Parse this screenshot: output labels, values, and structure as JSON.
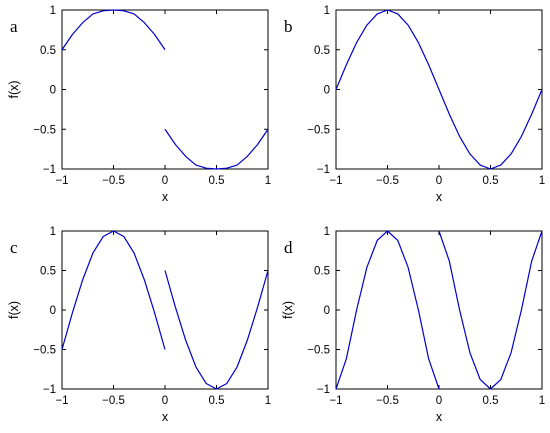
{
  "line_color": "#0000cc",
  "chart_data": [
    {
      "type": "line",
      "panel_label": "a",
      "xlabel": "x",
      "ylabel": "f(x)",
      "xlim": [
        -1,
        1
      ],
      "ylim": [
        -1,
        1
      ],
      "xticks": [
        "−1",
        "−0.5",
        "0",
        "0.5",
        "1"
      ],
      "yticks": [
        "−1",
        "−0.5",
        "0",
        "0.5",
        "1"
      ],
      "series": [
        {
          "x": [
            -1,
            -0.9,
            -0.8,
            -0.7,
            -0.6,
            -0.5,
            -0.4,
            -0.3,
            -0.2,
            -0.1,
            0
          ],
          "y": [
            0.5,
            0.69,
            0.84,
            0.95,
            0.99,
            1.0,
            0.99,
            0.95,
            0.84,
            0.69,
            0.5
          ]
        },
        {
          "x": [
            0,
            0.1,
            0.2,
            0.3,
            0.4,
            0.5,
            0.6,
            0.7,
            0.8,
            0.9,
            1
          ],
          "y": [
            -0.5,
            -0.69,
            -0.84,
            -0.95,
            -0.99,
            -1.0,
            -0.99,
            -0.95,
            -0.84,
            -0.69,
            -0.5
          ]
        }
      ],
      "grid": false,
      "legend": "none"
    },
    {
      "type": "line",
      "panel_label": "b",
      "xlabel": "x",
      "ylabel": "",
      "xlim": [
        -1,
        1
      ],
      "ylim": [
        -1,
        1
      ],
      "xticks": [
        "−1",
        "−0.5",
        "0",
        "0.5",
        "1"
      ],
      "yticks": [
        "−1",
        "−0.5",
        "0",
        "0.5",
        "1"
      ],
      "series": [
        {
          "x": [
            -1,
            -0.9,
            -0.8,
            -0.7,
            -0.6,
            -0.5,
            -0.4,
            -0.3,
            -0.2,
            -0.1,
            0,
            0.1,
            0.2,
            0.3,
            0.4,
            0.5,
            0.6,
            0.7,
            0.8,
            0.9,
            1
          ],
          "y": [
            0,
            0.31,
            0.59,
            0.81,
            0.95,
            1.0,
            0.95,
            0.81,
            0.59,
            0.31,
            0,
            -0.31,
            -0.59,
            -0.81,
            -0.95,
            -1.0,
            -0.95,
            -0.81,
            -0.59,
            -0.31,
            0
          ]
        }
      ],
      "grid": false,
      "legend": "none"
    },
    {
      "type": "line",
      "panel_label": "c",
      "xlabel": "x",
      "ylabel": "f(x)",
      "xlim": [
        -1,
        1
      ],
      "ylim": [
        -1,
        1
      ],
      "xticks": [
        "−1",
        "−0.5",
        "0",
        "0.5",
        "1"
      ],
      "yticks": [
        "−1",
        "−0.5",
        "0",
        "0.5",
        "1"
      ],
      "series": [
        {
          "x": [
            -1,
            -0.9,
            -0.8,
            -0.7,
            -0.6,
            -0.5,
            -0.4,
            -0.3,
            -0.2,
            -0.1,
            0
          ],
          "y": [
            -0.5,
            -0.04,
            0.38,
            0.72,
            0.93,
            1.0,
            0.93,
            0.72,
            0.38,
            -0.04,
            -0.5
          ]
        },
        {
          "x": [
            0,
            0.1,
            0.2,
            0.3,
            0.4,
            0.5,
            0.6,
            0.7,
            0.8,
            0.9,
            1
          ],
          "y": [
            0.5,
            0.04,
            -0.38,
            -0.72,
            -0.93,
            -1.0,
            -0.93,
            -0.72,
            -0.38,
            0.04,
            0.5
          ]
        }
      ],
      "grid": false,
      "legend": "none"
    },
    {
      "type": "line",
      "panel_label": "d",
      "xlabel": "x",
      "ylabel": "f(x)",
      "xlim": [
        -1,
        1
      ],
      "ylim": [
        -1,
        1
      ],
      "xticks": [
        "−1",
        "−0.5",
        "0",
        "0.5",
        "1"
      ],
      "yticks": [
        "−1",
        "−0.5",
        "0",
        "0.5",
        "1"
      ],
      "series": [
        {
          "x": [
            -1,
            -0.9,
            -0.8,
            -0.7,
            -0.6,
            -0.5,
            -0.4,
            -0.3,
            -0.2,
            -0.1,
            0
          ],
          "y": [
            -1.0,
            -0.62,
            0.0,
            0.54,
            0.88,
            1.0,
            0.88,
            0.54,
            0.0,
            -0.62,
            -1.0
          ]
        },
        {
          "x": [
            0,
            0.1,
            0.2,
            0.3,
            0.4,
            0.5,
            0.6,
            0.7,
            0.8,
            0.9,
            1
          ],
          "y": [
            1.0,
            0.62,
            0.0,
            -0.54,
            -0.88,
            -1.0,
            -0.88,
            -0.54,
            0.0,
            0.62,
            1.0
          ]
        }
      ],
      "grid": false,
      "legend": "none"
    }
  ]
}
